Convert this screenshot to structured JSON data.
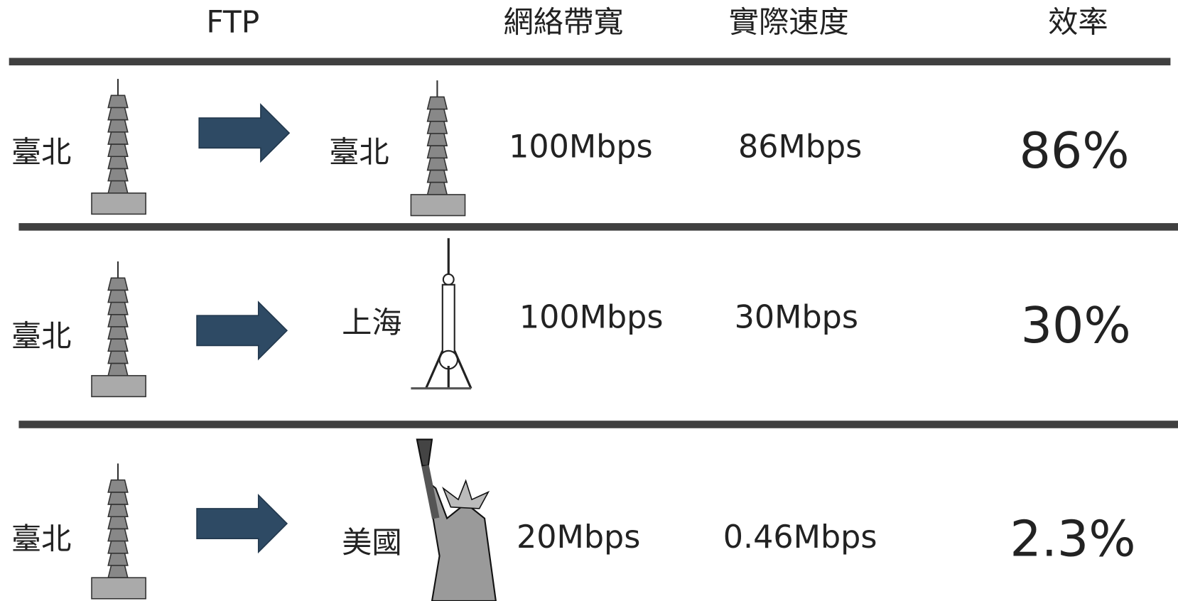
{
  "header": {
    "columns": [
      "FTP",
      "網絡帶寬",
      "實際速度",
      "效率"
    ]
  },
  "rows": [
    {
      "from": "臺北",
      "to": "臺北",
      "bandwidth": "100Mbps",
      "speed": "86Mbps",
      "efficiency": "86%"
    },
    {
      "from": "臺北",
      "to": "上海",
      "bandwidth": "100Mbps",
      "speed": "30Mbps",
      "efficiency": "30%"
    },
    {
      "from": "臺北",
      "to": "美國",
      "bandwidth": "20Mbps",
      "speed": "0.46Mbps",
      "efficiency": "2.3%"
    }
  ]
}
